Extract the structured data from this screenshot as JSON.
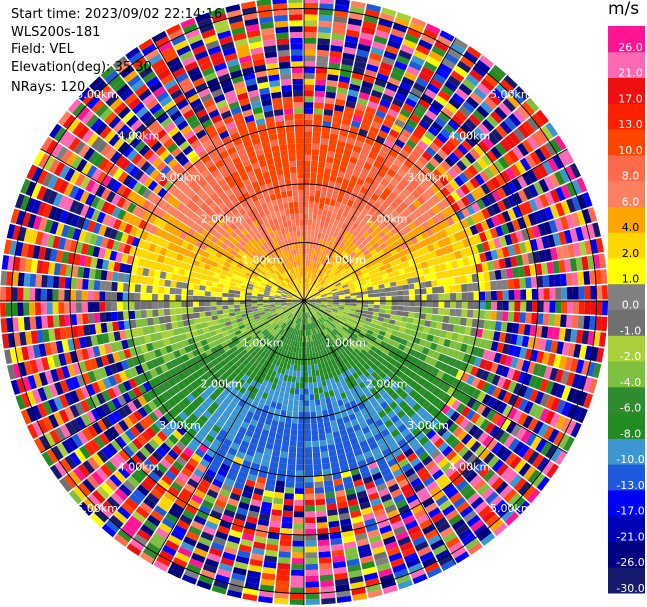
{
  "header": {
    "start_time": "Start time: 2023/09/02 22:14:16",
    "instrument": "WLS200s-181",
    "field": "Field: VEL",
    "elevation": "Elevation(deg): 35.30",
    "nrays": "NRays: 120"
  },
  "chart_data": {
    "type": "polar-ppi",
    "field": "VEL",
    "units": "m/s",
    "nrays": 120,
    "range_rings_km": [
      1.0,
      2.0,
      3.0,
      4.0,
      5.0
    ],
    "range_ring_labels": [
      "1.00km",
      "2.00km",
      "3.00km",
      "4.00km",
      "5.00km"
    ],
    "max_range_km": 5.2,
    "azimuth_spokes_deg": [
      0,
      30,
      60,
      90,
      120,
      150,
      180,
      210,
      240,
      270,
      300,
      330
    ],
    "colorbar": {
      "unit_label": "m/s",
      "levels": [
        -30.0,
        -26.0,
        -21.0,
        -17.0,
        -13.0,
        -10.0,
        -8.0,
        -6.0,
        -4.0,
        -2.0,
        -1.0,
        0.0,
        1.0,
        2.0,
        4.0,
        6.0,
        8.0,
        10.0,
        13.0,
        17.0,
        21.0,
        26.0
      ],
      "tick_labels": [
        "-30.0",
        "-26.0",
        "-21.0",
        "-17.0",
        "-13.0",
        "-10.0",
        "-8.0",
        "-6.0",
        "-4.0",
        "-2.0",
        "-1.0",
        "0.0",
        "1.0",
        "2.0",
        "4.0",
        "6.0",
        "8.0",
        "10.0",
        "13.0",
        "17.0",
        "21.0",
        "26.0"
      ],
      "colors": [
        "#151a6e",
        "#000080",
        "#0000b4",
        "#0000ff",
        "#1e5adc",
        "#3c96d2",
        "#228b22",
        "#2e8b2e",
        "#7fbf3f",
        "#a8d03a",
        "#707070",
        "#808080",
        "#ffff00",
        "#ffd700",
        "#ffa500",
        "#ff8060",
        "#ff6a4a",
        "#ff4500",
        "#ff2000",
        "#ee1010",
        "#ff69b4",
        "#ff1493"
      ]
    }
  }
}
